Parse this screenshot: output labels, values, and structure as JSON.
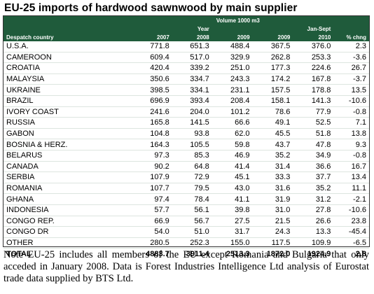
{
  "header": {
    "title": "EU-25 imports of hardwood sawnwood by main supplier",
    "volume_label": "Volume 1000 m3",
    "year_label": "Year",
    "period_label": "Jan-Sept",
    "columns": [
      "Despatch country",
      "2007",
      "2008",
      "2009",
      "2009",
      "2010",
      "% chng"
    ]
  },
  "table": {
    "rows": [
      [
        "U.S.A.",
        "771.8",
        "651.3",
        "488.4",
        "367.5",
        "376.0",
        "2.3"
      ],
      [
        "CAMEROON",
        "609.4",
        "517.0",
        "329.9",
        "262.8",
        "253.3",
        "-3.6"
      ],
      [
        "CROATIA",
        "420.4",
        "339.2",
        "251.0",
        "177.3",
        "224.6",
        "26.7"
      ],
      [
        "MALAYSIA",
        "350.6",
        "334.7",
        "243.3",
        "174.2",
        "167.8",
        "-3.7"
      ],
      [
        "UKRAINE",
        "398.5",
        "334.1",
        "231.1",
        "157.5",
        "178.8",
        "13.5"
      ],
      [
        "BRAZIL",
        "696.9",
        "393.4",
        "208.4",
        "158.1",
        "141.3",
        "-10.6"
      ],
      [
        "IVORY COAST",
        "241.6",
        "204.0",
        "101.2",
        "78.6",
        "77.9",
        "-0.8"
      ],
      [
        "RUSSIA",
        "165.8",
        "141.5",
        "66.6",
        "49.1",
        "52.5",
        "7.1"
      ],
      [
        "GABON",
        "104.8",
        "93.8",
        "62.0",
        "45.5",
        "51.8",
        "13.8"
      ],
      [
        "BOSNIA & HERZ.",
        "164.3",
        "105.5",
        "59.8",
        "43.7",
        "47.8",
        "9.3"
      ],
      [
        "BELARUS",
        "97.3",
        "85.3",
        "46.9",
        "35.2",
        "34.9",
        "-0.8"
      ],
      [
        "CANADA",
        "90.2",
        "64.8",
        "41.4",
        "31.4",
        "36.6",
        "16.7"
      ],
      [
        "SERBIA",
        "107.9",
        "72.9",
        "45.1",
        "33.3",
        "37.7",
        "13.4"
      ],
      [
        "ROMANIA",
        "107.7",
        "79.5",
        "43.0",
        "31.6",
        "35.2",
        "11.1"
      ],
      [
        "GHANA",
        "97.4",
        "78.4",
        "41.1",
        "31.9",
        "31.2",
        "-2.1"
      ],
      [
        "INDONESIA",
        "57.7",
        "56.1",
        "39.8",
        "31.0",
        "27.8",
        "-10.6"
      ],
      [
        "CONGO REP.",
        "66.9",
        "56.7",
        "27.5",
        "21.5",
        "26.6",
        "23.8"
      ],
      [
        "CONGO DR",
        "54.0",
        "51.0",
        "31.7",
        "24.3",
        "13.3",
        "-45.4"
      ],
      [
        "OTHER",
        "280.5",
        "252.3",
        "155.0",
        "117.5",
        "109.9",
        "-6.5"
      ]
    ],
    "total": [
      "TOTAL",
      "4883.7",
      "3911.4",
      "2513.3",
      "1872.0",
      "1924.9",
      "2.8"
    ]
  },
  "note": "Note EU-25 includes all members of the EU except Romania and Bulgaria that only acceded in January 2008. Data is Forest Industries Intelligence Ltd analysis of Eurostat trade data supplied by BTS Ltd."
}
